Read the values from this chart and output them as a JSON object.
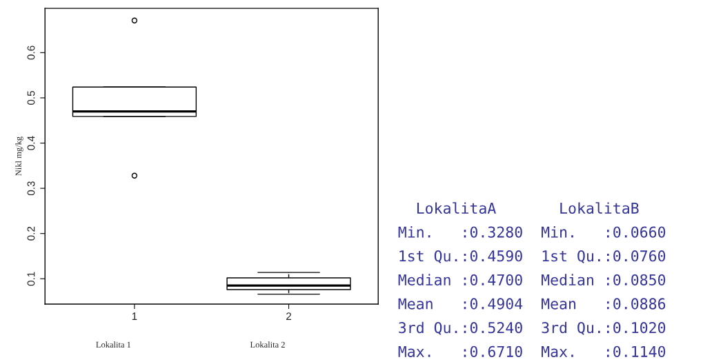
{
  "chart_data": {
    "type": "box",
    "ylabel": "Nikl mg/kg",
    "categories": [
      "1",
      "2"
    ],
    "boxes": [
      {
        "low": 0.459,
        "q1": 0.459,
        "median": 0.47,
        "q3": 0.524,
        "high": 0.524,
        "outliers": [
          0.328,
          0.671
        ]
      },
      {
        "low": 0.066,
        "q1": 0.076,
        "median": 0.085,
        "q3": 0.102,
        "high": 0.114
      }
    ],
    "ylim": [
      0.044,
      0.698
    ],
    "yticks": [
      0.1,
      0.2,
      0.3,
      0.4,
      0.5,
      0.6
    ],
    "grid": false,
    "legend": false,
    "annotations": [
      "Lokalita 1",
      "Lokalita 2",
      "  LokalitaA       LokalitaB",
      "Min.   :0.3280  Min.   :0.0660",
      "1st Qu.:0.4590  1st Qu.:0.0760",
      "Median :0.4700  Median :0.0850",
      "Mean   :0.4904  Mean   :0.0886",
      "3rd Qu.:0.5240  3rd Qu.:0.1020",
      "Max.   :0.6710  Max.   :0.1140"
    ]
  }
}
